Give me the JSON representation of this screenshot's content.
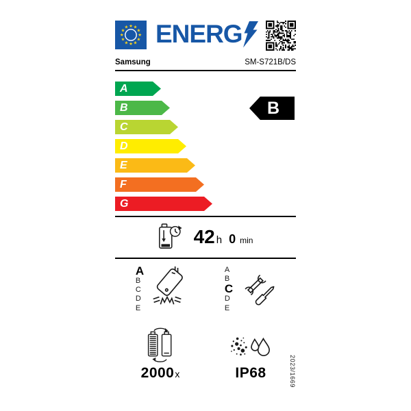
{
  "header": {
    "energy_wordmark": "ENERG"
  },
  "product": {
    "supplier": "Samsung",
    "model": "SM-S721B/DS"
  },
  "efficiency_scale": {
    "classes": [
      {
        "letter": "A",
        "color": "#00a651"
      },
      {
        "letter": "B",
        "color": "#4cb848"
      },
      {
        "letter": "C",
        "color": "#b9d532"
      },
      {
        "letter": "D",
        "color": "#ffed00"
      },
      {
        "letter": "E",
        "color": "#fbba16"
      },
      {
        "letter": "F",
        "color": "#f36f21"
      },
      {
        "letter": "G",
        "color": "#ec1c24"
      }
    ],
    "rated_class": "B"
  },
  "battery_endurance": {
    "hours": "42",
    "hours_unit": "h",
    "minutes": "0",
    "minutes_unit": "min"
  },
  "free_fall_reliability": {
    "grades": [
      "A",
      "B",
      "C",
      "D",
      "E"
    ],
    "rated": "A"
  },
  "repairability": {
    "grades": [
      "A",
      "B",
      "C",
      "D",
      "E"
    ],
    "rated": "C"
  },
  "battery_cycles": {
    "value": "2000",
    "unit": "x"
  },
  "ingress_protection": {
    "rating": "IP68"
  },
  "regulation_number": "2023/1669",
  "icons": {
    "flag": "eu-flag",
    "bolt": "lightning-bolt",
    "qr": "qr-code",
    "endurance": "battery-with-clock",
    "free_fall": "falling-phone",
    "repairability": "wrench-and-screwdriver",
    "cycles": "battery-recharge-cycle",
    "ingress": "dust-and-water-drops"
  },
  "colors": {
    "eu-blue": "#1757a6",
    "star-yellow": "#ffd617",
    "class-a": "#00a651",
    "class-b": "#4cb848",
    "class-c": "#b9d532",
    "class-d": "#ffed00",
    "class-e": "#fbba16",
    "class-f": "#f36f21",
    "class-g": "#ec1c24"
  }
}
